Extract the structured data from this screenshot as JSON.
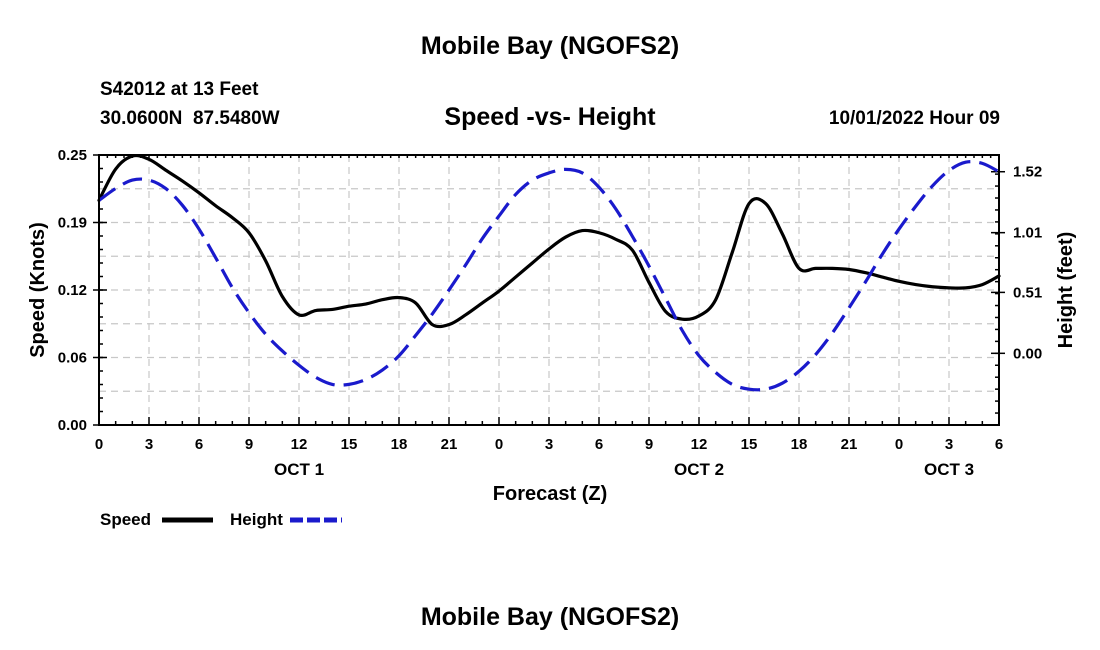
{
  "header": {
    "title": "Mobile Bay (NGOFS2)",
    "station": "S42012 at 13 Feet",
    "coords": "30.0600N  87.5480W",
    "subtitle": "Speed -vs- Height",
    "timestamp": "10/01/2022 Hour 09"
  },
  "footer": {
    "title": "Mobile Bay (NGOFS2)"
  },
  "colors": {
    "speed": "#000000",
    "height": "#1a1acc",
    "grid": "#c8c8c8"
  },
  "chart_data": {
    "type": "line",
    "xlabel": "Forecast (Z)",
    "ylabel_left": "Speed (Knots)",
    "ylabel_right": "Height (feet)",
    "x_range_hours": [
      0,
      54
    ],
    "x_ticks": [
      {
        "h": 0,
        "label": "0"
      },
      {
        "h": 3,
        "label": "3"
      },
      {
        "h": 6,
        "label": "6"
      },
      {
        "h": 9,
        "label": "9"
      },
      {
        "h": 12,
        "label": "12"
      },
      {
        "h": 15,
        "label": "15"
      },
      {
        "h": 18,
        "label": "18"
      },
      {
        "h": 21,
        "label": "21"
      },
      {
        "h": 24,
        "label": "0"
      },
      {
        "h": 27,
        "label": "3"
      },
      {
        "h": 30,
        "label": "6"
      },
      {
        "h": 33,
        "label": "9"
      },
      {
        "h": 36,
        "label": "12"
      },
      {
        "h": 39,
        "label": "15"
      },
      {
        "h": 42,
        "label": "18"
      },
      {
        "h": 45,
        "label": "21"
      },
      {
        "h": 48,
        "label": "0"
      },
      {
        "h": 51,
        "label": "3"
      },
      {
        "h": 54,
        "label": "6"
      }
    ],
    "date_labels": [
      {
        "h": 12,
        "label": "OCT 1"
      },
      {
        "h": 36,
        "label": "OCT 2"
      },
      {
        "h": 51,
        "label": "OCT 3"
      }
    ],
    "y_left": {
      "range": [
        0,
        0.25
      ],
      "ticks": [
        {
          "v": 0,
          "label": "0.00"
        },
        {
          "v": 0.0625,
          "label": "0.06"
        },
        {
          "v": 0.125,
          "label": "0.12"
        },
        {
          "v": 0.1875,
          "label": "0.19"
        },
        {
          "v": 0.25,
          "label": "0.25"
        }
      ]
    },
    "y_right": {
      "range": [
        -0.6,
        1.66
      ],
      "ticks": [
        {
          "v": 0.0,
          "label": "0.00"
        },
        {
          "v": 0.51,
          "label": "0.51"
        },
        {
          "v": 1.01,
          "label": "1.01"
        },
        {
          "v": 1.52,
          "label": "1.52"
        }
      ]
    },
    "series": [
      {
        "name": "Speed",
        "axis": "left",
        "style": "solid",
        "x": [
          0,
          1,
          2,
          3,
          4,
          5,
          6,
          7,
          8,
          9,
          10,
          11,
          12,
          13,
          14,
          15,
          16,
          17,
          18,
          19,
          20,
          21,
          22,
          23,
          24,
          25,
          26,
          27,
          28,
          29,
          30,
          31,
          32,
          33,
          34,
          35,
          36,
          37,
          38,
          39,
          40,
          41,
          42,
          43,
          44,
          45,
          46,
          47,
          48,
          49,
          50,
          51,
          52,
          53,
          54
        ],
        "values": [
          0.208,
          0.237,
          0.249,
          0.246,
          0.236,
          0.226,
          0.215,
          0.203,
          0.192,
          0.178,
          0.152,
          0.119,
          0.102,
          0.106,
          0.107,
          0.11,
          0.112,
          0.116,
          0.118,
          0.113,
          0.093,
          0.093,
          0.102,
          0.113,
          0.124,
          0.137,
          0.15,
          0.163,
          0.174,
          0.18,
          0.178,
          0.172,
          0.162,
          0.132,
          0.105,
          0.098,
          0.101,
          0.116,
          0.16,
          0.205,
          0.205,
          0.177,
          0.145,
          0.145,
          0.145,
          0.144,
          0.141,
          0.137,
          0.133,
          0.13,
          0.128,
          0.127,
          0.127,
          0.13,
          0.138
        ]
      },
      {
        "name": "Height",
        "axis": "right",
        "style": "dashed",
        "x": [
          0,
          1,
          2,
          3,
          4,
          5,
          6,
          7,
          8,
          9,
          10,
          11,
          12,
          13,
          14,
          15,
          16,
          17,
          18,
          19,
          20,
          21,
          22,
          23,
          24,
          25,
          26,
          27,
          28,
          29,
          30,
          31,
          32,
          33,
          34,
          35,
          36,
          37,
          38,
          39,
          40,
          41,
          42,
          43,
          44,
          45,
          46,
          47,
          48,
          49,
          50,
          51,
          52,
          53,
          54
        ],
        "values": [
          1.28,
          1.38,
          1.45,
          1.45,
          1.38,
          1.24,
          1.04,
          0.8,
          0.55,
          0.34,
          0.16,
          0.02,
          -0.1,
          -0.2,
          -0.26,
          -0.26,
          -0.22,
          -0.14,
          -0.02,
          0.15,
          0.33,
          0.53,
          0.74,
          0.96,
          1.15,
          1.33,
          1.45,
          1.51,
          1.54,
          1.51,
          1.39,
          1.21,
          0.98,
          0.73,
          0.46,
          0.19,
          -0.02,
          -0.16,
          -0.26,
          -0.3,
          -0.3,
          -0.25,
          -0.15,
          -0.01,
          0.17,
          0.38,
          0.6,
          0.83,
          1.04,
          1.23,
          1.4,
          1.53,
          1.6,
          1.59,
          1.52
        ]
      }
    ],
    "legend": [
      {
        "label": "Speed",
        "style": "solid"
      },
      {
        "label": "Height",
        "style": "dashed"
      }
    ],
    "legend_position": "bottom-left",
    "grid": true
  }
}
